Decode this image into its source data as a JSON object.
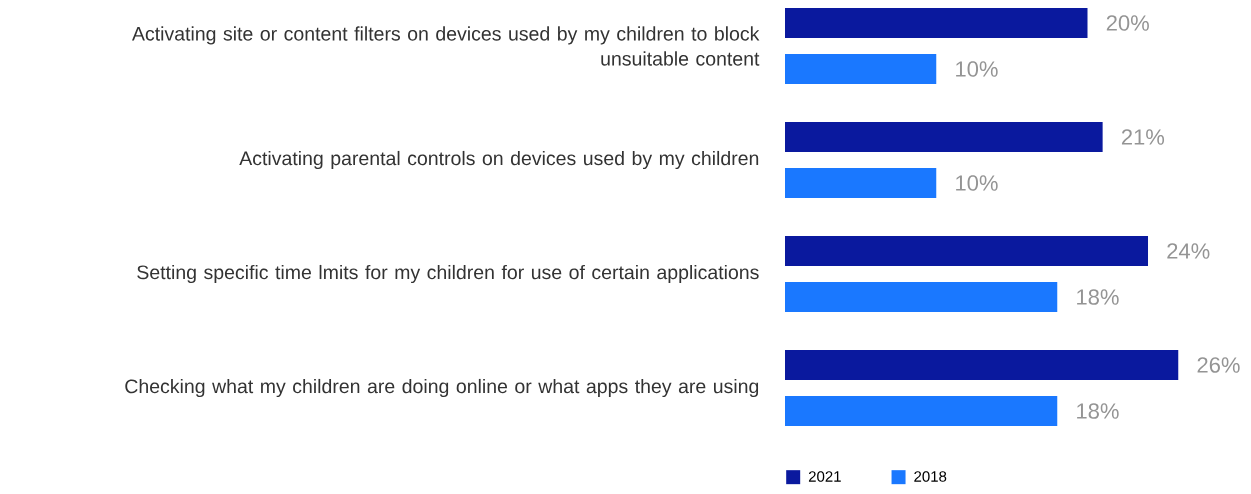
{
  "chart_data": {
    "type": "bar",
    "orientation": "horizontal",
    "legend": "bottom",
    "categories": [
      "Activating site or content filters on devices used by my children to block unsuitable content",
      "Activating parental controls on devices used by my children",
      "Setting specific time lmits for my children for use of certain applications",
      "Checking what my children are doing online or what apps they are using"
    ],
    "series": [
      {
        "name": "2021",
        "color": "#0a199e",
        "values": [
          20,
          21,
          24,
          26
        ],
        "value_labels": [
          "20%",
          "21%",
          "24%",
          "26%"
        ]
      },
      {
        "name": "2018",
        "color": "#1a78ff",
        "values": [
          10,
          10,
          18,
          18
        ],
        "value_labels": [
          "10%",
          "10%",
          "18%",
          "18%"
        ]
      }
    ]
  }
}
